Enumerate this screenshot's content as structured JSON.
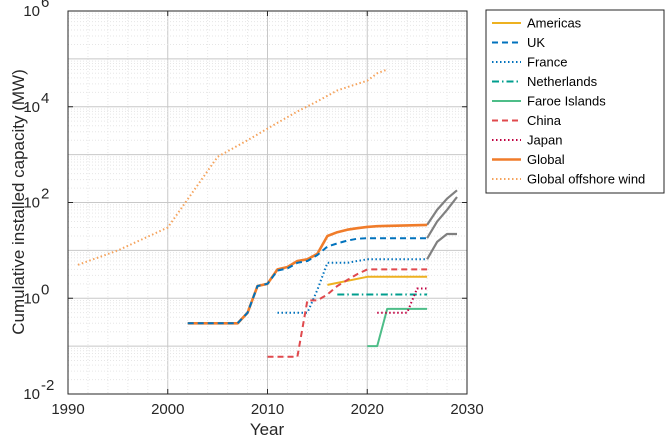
{
  "chart_data": {
    "type": "line",
    "xlabel": "Year",
    "ylabel": "Cumulative installed capacity (MW)",
    "xlim": [
      1990,
      2030
    ],
    "ylim": [
      0.01,
      1000000
    ],
    "yscale": "log",
    "grid": true,
    "legend_placement": "outside-right",
    "x_ticks": [
      1990,
      2000,
      2010,
      2020,
      2030
    ],
    "y_ticks": [
      {
        "value": 0.01,
        "base": "10",
        "exp": "-2"
      },
      {
        "value": 1,
        "base": "10",
        "exp": "0"
      },
      {
        "value": 100,
        "base": "10",
        "exp": "2"
      },
      {
        "value": 10000,
        "base": "10",
        "exp": "4"
      },
      {
        "value": 1000000,
        "base": "10",
        "exp": "6"
      }
    ],
    "series": [
      {
        "name": "Americas",
        "color": "#EDB120",
        "dash": "solid",
        "x": [
          2016,
          2020,
          2026
        ],
        "y": [
          1.9,
          2.8,
          2.8
        ]
      },
      {
        "name": "UK",
        "color": "#0072BD",
        "dash": "dashed",
        "x": [
          2002,
          2007,
          2008,
          2009,
          2010,
          2011,
          2012,
          2013,
          2014,
          2015,
          2016,
          2017,
          2018,
          2019,
          2020,
          2026
        ],
        "y": [
          0.3,
          0.3,
          0.5,
          1.8,
          2.0,
          3.8,
          4.2,
          5.5,
          6.0,
          8.0,
          12.0,
          14.0,
          16.0,
          17.5,
          18.0,
          18.0
        ]
      },
      {
        "name": "France",
        "color": "#0072BD",
        "dash": "dotted",
        "x": [
          2011,
          2014,
          2015,
          2016,
          2018,
          2019,
          2020,
          2026
        ],
        "y": [
          0.5,
          0.5,
          1.5,
          5.5,
          5.5,
          6.0,
          6.5,
          6.5
        ]
      },
      {
        "name": "Netherlands",
        "color": "#009E8E",
        "dash": "dashdot",
        "x": [
          2017,
          2026
        ],
        "y": [
          1.2,
          1.2
        ]
      },
      {
        "name": "Faroe Islands",
        "color": "#4DBD88",
        "dash": "solid",
        "x": [
          2020,
          2021,
          2022,
          2026
        ],
        "y": [
          0.1,
          0.1,
          0.6,
          0.6
        ]
      },
      {
        "name": "China",
        "color": "#E0494D",
        "dash": "dashed",
        "x": [
          2010,
          2013,
          2014,
          2015,
          2016,
          2017,
          2018,
          2019,
          2020,
          2026
        ],
        "y": [
          0.06,
          0.06,
          0.9,
          0.9,
          1.2,
          1.8,
          2.4,
          3.2,
          4.0,
          4.0
        ]
      },
      {
        "name": "Japan",
        "color": "#C00040",
        "dash": "dotted",
        "x": [
          2021,
          2024,
          2025,
          2026
        ],
        "y": [
          0.5,
          0.5,
          1.6,
          1.6
        ]
      },
      {
        "name": "Global",
        "color": "#F07C2A",
        "dash": "solid",
        "x": [
          2002,
          2007,
          2008,
          2009,
          2010,
          2011,
          2012,
          2013,
          2014,
          2015,
          2016,
          2017,
          2018,
          2019,
          2020,
          2021,
          2026
        ],
        "y": [
          0.3,
          0.3,
          0.5,
          1.8,
          2.0,
          4.0,
          4.5,
          6.0,
          6.5,
          8.5,
          20.0,
          24.0,
          27.0,
          29.0,
          31.0,
          32.0,
          34.0
        ]
      },
      {
        "name": "Global offshore wind",
        "color": "#F5A35C",
        "dash": "dotted",
        "x": [
          1991,
          1995,
          2000,
          2005,
          2008,
          2010,
          2013,
          2015,
          2017,
          2019,
          2020,
          2021,
          2022
        ],
        "y": [
          5,
          10,
          30,
          900,
          2000,
          3500,
          8000,
          13000,
          22000,
          30000,
          35000,
          50000,
          60000
        ]
      }
    ],
    "unlabeled_series": [
      {
        "color": "#808080",
        "dash": "solid",
        "x": [
          2026,
          2027,
          2028,
          2029
        ],
        "y": [
          34,
          70,
          120,
          180
        ]
      },
      {
        "color": "#808080",
        "dash": "solid",
        "x": [
          2026,
          2027,
          2028,
          2029
        ],
        "y": [
          18,
          40,
          70,
          130
        ]
      },
      {
        "color": "#808080",
        "dash": "solid",
        "x": [
          2026,
          2027,
          2028,
          2029
        ],
        "y": [
          6.5,
          15,
          22,
          22
        ]
      }
    ]
  }
}
